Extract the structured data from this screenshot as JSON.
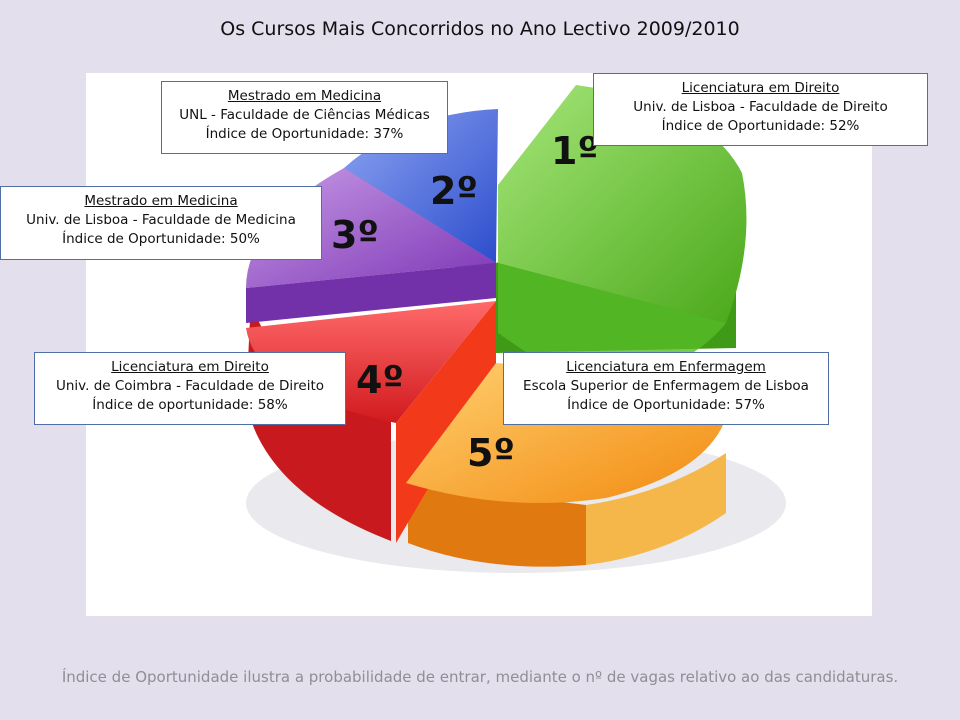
{
  "title": "Os Cursos Mais Concorridos no Ano Lectivo 2009/2010",
  "colors": {
    "green": "#5fc832",
    "blue": "#3e5fd8",
    "purple": "#9448c6",
    "red": "#e5282c",
    "orange": "#f9a21c",
    "background": "#e4dfec"
  },
  "ranks": [
    "1º",
    "2º",
    "3º",
    "4º",
    "5º"
  ],
  "boxes": [
    {
      "course": "Licenciatura  em Direito",
      "institution": "Univ. de Lisboa - Faculdade de Direito",
      "index": "Índice de Oportunidade:  52%"
    },
    {
      "course": "Mestrado em Medicina",
      "institution": "UNL - Faculdade  de  Ciências  Médicas",
      "index": "Índice de Oportunidade:  37%"
    },
    {
      "course": "Mestrado em Medicina",
      "institution": "Univ. de Lisboa - Faculdade de Medicina",
      "index": "Índice de Oportunidade:  50%"
    },
    {
      "course": "Licenciatura  em Direito",
      "institution": "Univ. de Coimbra - Faculdade de Direito",
      "index": "Índice de oportunidade:  58%"
    },
    {
      "course": "Licenciatura  em Enfermagem",
      "institution": "Escola Superior de Enfermagem de Lisboa",
      "index": "Índice de Oportunidade:  57%"
    }
  ],
  "footnote": "Índice de Oportunidade ilustra a probabilidade de entrar, mediante o nº de vagas relativo ao das candidaturas."
}
